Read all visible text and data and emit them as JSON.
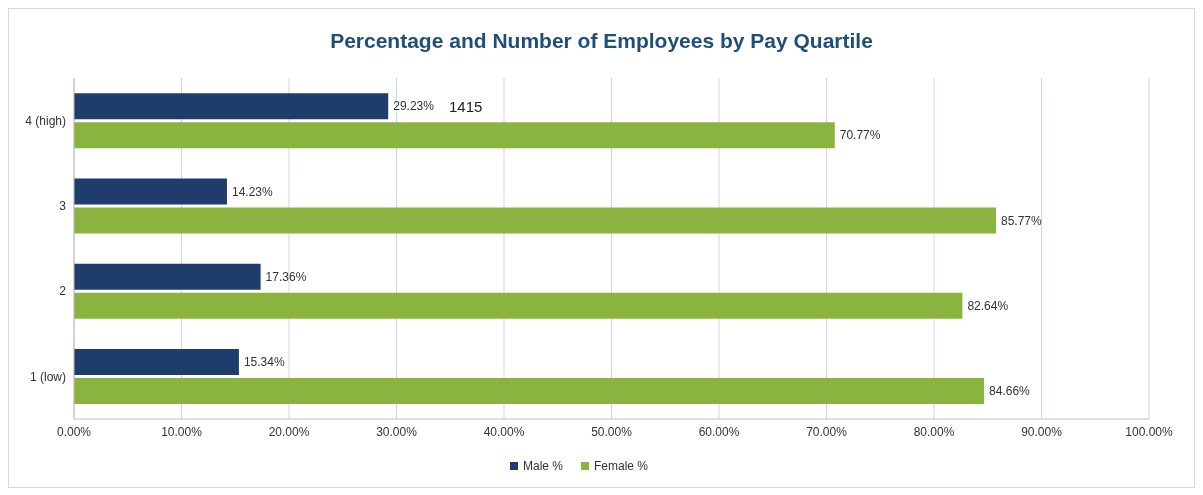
{
  "chart_data": {
    "type": "bar",
    "orientation": "horizontal",
    "title": "Percentage and Number of Employees by Pay Quartile",
    "categories": [
      "4 (high)",
      "3",
      "2",
      "1 (low)"
    ],
    "series": [
      {
        "name": "Male %",
        "color": "#1f3d6b",
        "values": [
          29.23,
          14.23,
          17.36,
          15.34
        ],
        "value_labels": [
          "29.23%",
          "14.23%",
          "17.36%",
          "15.34%"
        ]
      },
      {
        "name": "Female %",
        "color": "#8ab33f",
        "values": [
          70.77,
          85.77,
          82.64,
          84.66
        ],
        "value_labels": [
          "70.77%",
          "85.77%",
          "82.64%",
          "84.66%"
        ]
      }
    ],
    "xlim": [
      0,
      100
    ],
    "xticks": [
      {
        "value": 0,
        "label": "0.00%"
      },
      {
        "value": 10,
        "label": "10.00%"
      },
      {
        "value": 20,
        "label": "20.00%"
      },
      {
        "value": 30,
        "label": "30.00%"
      },
      {
        "value": 40,
        "label": "40.00%"
      },
      {
        "value": 50,
        "label": "50.00%"
      },
      {
        "value": 60,
        "label": "60.00%"
      },
      {
        "value": 70,
        "label": "70.00%"
      },
      {
        "value": 80,
        "label": "80.00%"
      },
      {
        "value": 90,
        "label": "90.00%"
      },
      {
        "value": 100,
        "label": "100.00%"
      }
    ],
    "annotations": [
      "1415"
    ],
    "grid": "x",
    "legend": "bottom"
  }
}
